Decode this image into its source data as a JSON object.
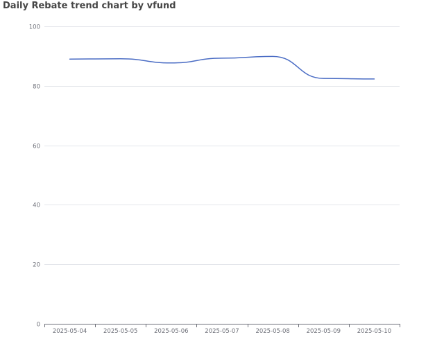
{
  "chart_data": {
    "type": "line",
    "title": "Daily Rebate trend chart by vfund",
    "xlabel": "",
    "ylabel": "",
    "categories": [
      "2025-05-04",
      "2025-05-05",
      "2025-05-06",
      "2025-05-07",
      "2025-05-08",
      "2025-05-09",
      "2025-05-10"
    ],
    "series": [
      {
        "name": "",
        "color": "#4a6cc4",
        "values": [
          89.0,
          89.1,
          87.7,
          89.3,
          89.9,
          82.5,
          82.3
        ]
      }
    ],
    "ylim": [
      0,
      100
    ],
    "yticks": [
      0,
      20,
      40,
      60,
      80,
      100
    ],
    "grid": true,
    "legend": "none",
    "smooth": true
  }
}
